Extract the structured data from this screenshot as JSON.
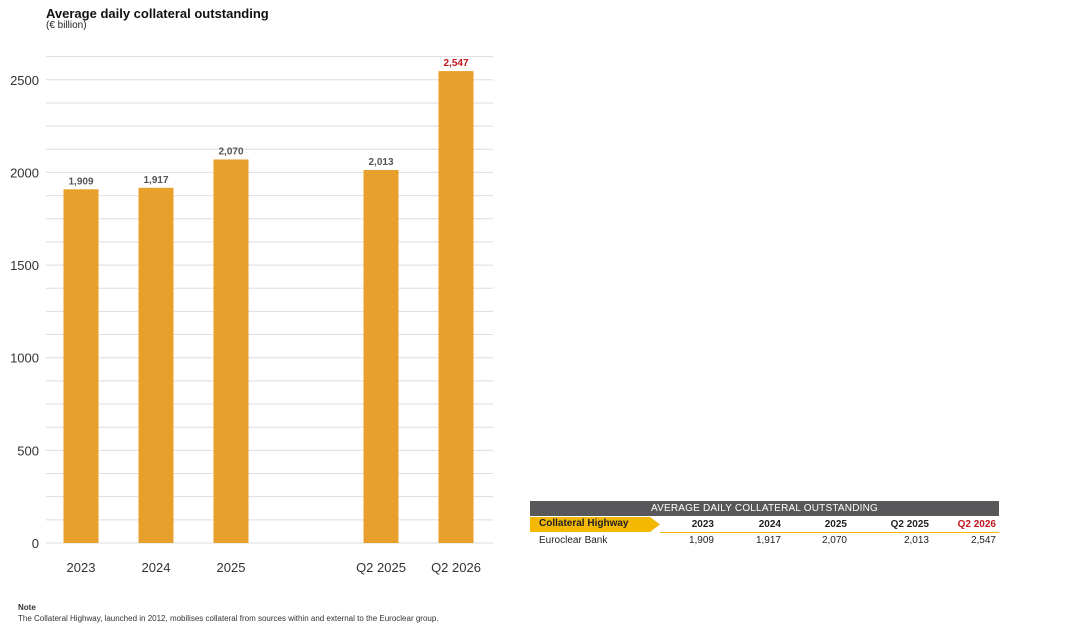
{
  "chart_data": {
    "type": "bar",
    "title": "Average daily collateral outstanding",
    "subtitle": "(€ billion)",
    "categories": [
      "2023",
      "2024",
      "2025",
      "Q2 2025",
      "Q2 2026"
    ],
    "values": [
      1909,
      1917,
      2070,
      2013,
      2547
    ],
    "value_labels": [
      "1,909",
      "1,917",
      "2,070",
      "2,013",
      "2,547"
    ],
    "highlight_index": 4,
    "yticks": [
      0,
      500,
      1000,
      1500,
      2000,
      2500
    ],
    "ylim": [
      0,
      2650
    ],
    "grid": true,
    "bar_color": "#e8a02c",
    "highlight_label_color": "#c0161e"
  },
  "note": {
    "heading": "Note",
    "text": "The Collateral Highway, launched in 2012, mobilises collateral from sources within and external to the Euroclear group."
  },
  "table": {
    "title": "AVERAGE DAILY COLLATERAL OUTSTANDING",
    "row_header": "Collateral Highway",
    "columns": [
      "2023",
      "2024",
      "2025",
      "Q2 2025",
      "Q2 2026"
    ],
    "rows": [
      {
        "name": "Euroclear Bank",
        "values": [
          "1,909",
          "1,917",
          "2,070",
          "2,013",
          "2,547"
        ]
      }
    ]
  }
}
